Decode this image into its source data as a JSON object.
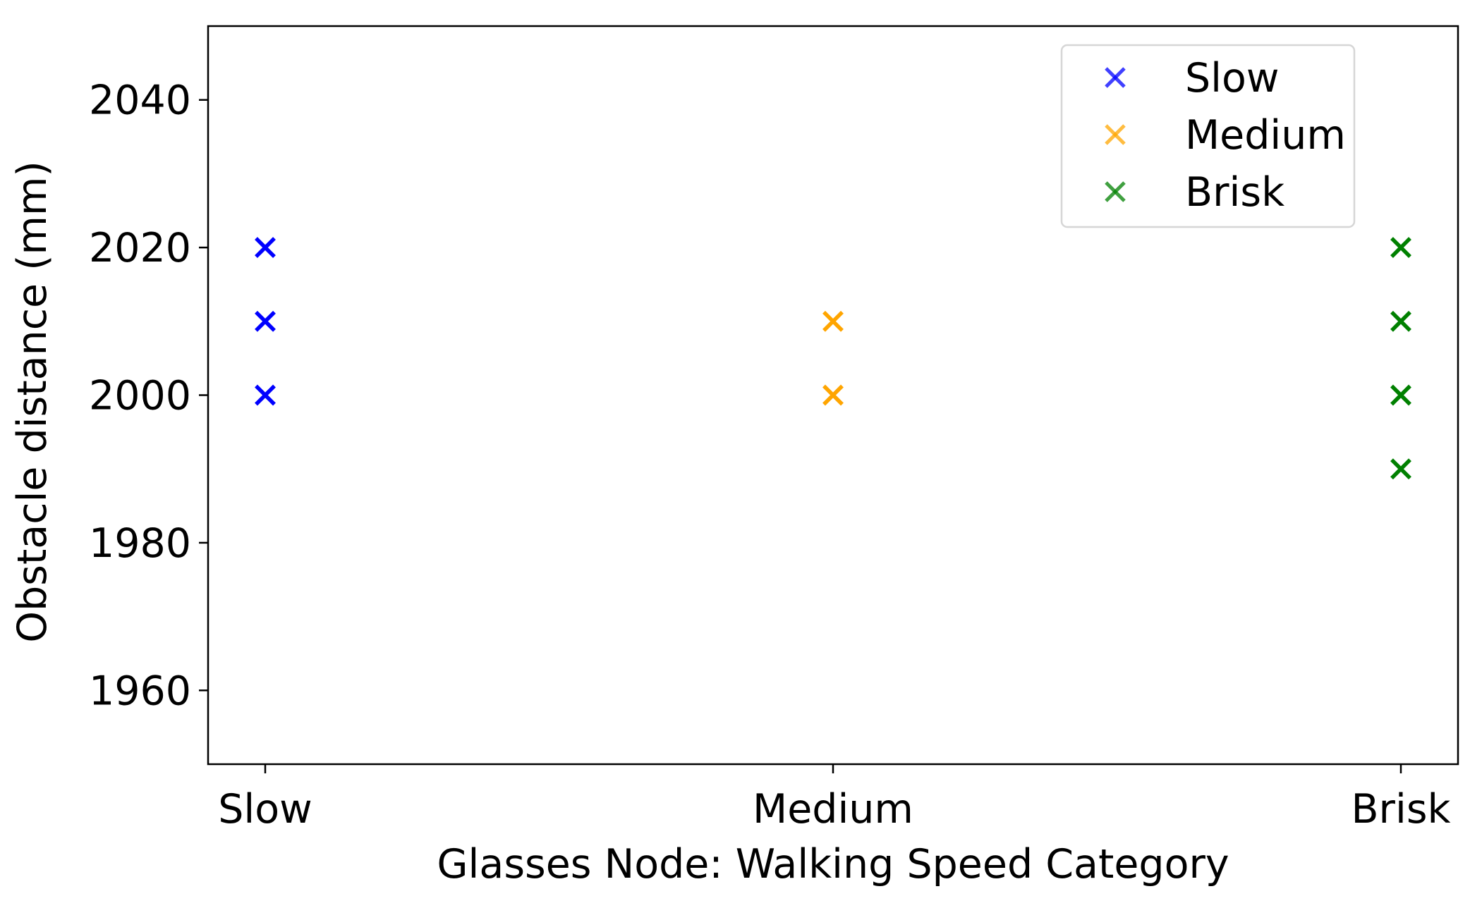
{
  "chart_data": {
    "type": "scatter",
    "title": "",
    "xlabel": "Glasses Node: Walking Speed Category",
    "ylabel": "Obstacle distance (mm)",
    "categories": [
      "Slow",
      "Medium",
      "Brisk"
    ],
    "ylim": [
      1950,
      2050
    ],
    "yticks": [
      1960,
      1980,
      2000,
      2020,
      2040
    ],
    "grid": false,
    "legend_position": "top-right",
    "marker": "x",
    "series": [
      {
        "name": "Slow",
        "color": "#0000ff",
        "points": [
          {
            "x": "Slow",
            "y": 2020
          },
          {
            "x": "Slow",
            "y": 2010
          },
          {
            "x": "Slow",
            "y": 2000
          }
        ]
      },
      {
        "name": "Medium",
        "color": "#ffa500",
        "points": [
          {
            "x": "Medium",
            "y": 2010
          },
          {
            "x": "Medium",
            "y": 2000
          }
        ]
      },
      {
        "name": "Brisk",
        "color": "#008000",
        "points": [
          {
            "x": "Brisk",
            "y": 2020
          },
          {
            "x": "Brisk",
            "y": 2010
          },
          {
            "x": "Brisk",
            "y": 2000
          },
          {
            "x": "Brisk",
            "y": 1990
          }
        ]
      }
    ]
  }
}
